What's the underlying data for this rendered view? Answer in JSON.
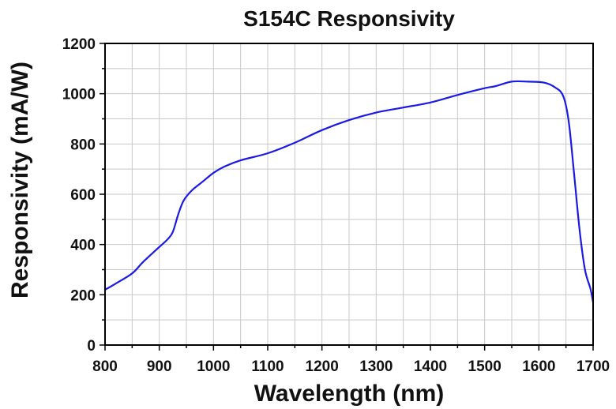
{
  "chart_data": {
    "type": "line",
    "title": "S154C Responsivity",
    "xlabel": "Wavelength (nm)",
    "ylabel": "Responsivity (mA/W)",
    "xlim": [
      800,
      1700
    ],
    "ylim": [
      0,
      1200
    ],
    "x_ticks": [
      800,
      900,
      1000,
      1100,
      1200,
      1300,
      1400,
      1500,
      1600,
      1700
    ],
    "y_ticks": [
      0,
      200,
      400,
      600,
      800,
      1000,
      1200
    ],
    "grid": true,
    "series_color": "#1a1ae6",
    "x": [
      800,
      820,
      850,
      870,
      900,
      915,
      925,
      935,
      945,
      960,
      980,
      1000,
      1020,
      1050,
      1100,
      1150,
      1200,
      1250,
      1300,
      1350,
      1400,
      1450,
      1500,
      1520,
      1550,
      1580,
      1610,
      1630,
      1645,
      1655,
      1665,
      1675,
      1685,
      1695,
      1700
    ],
    "y": [
      220,
      245,
      285,
      330,
      390,
      420,
      450,
      520,
      575,
      615,
      650,
      685,
      710,
      735,
      763,
      805,
      855,
      895,
      925,
      945,
      965,
      995,
      1022,
      1030,
      1048,
      1048,
      1044,
      1025,
      990,
      890,
      680,
      460,
      300,
      225,
      170
    ]
  }
}
